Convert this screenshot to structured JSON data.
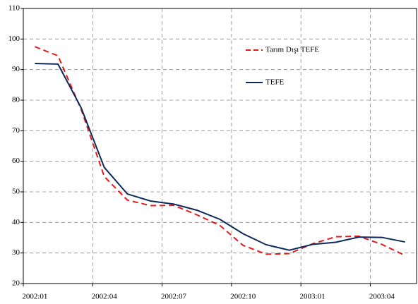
{
  "chart_data": {
    "type": "line",
    "categories": [
      "2002:01",
      null,
      null,
      "2002:04",
      null,
      null,
      "2002:07",
      null,
      null,
      "2002:10",
      null,
      null,
      "2003:01",
      null,
      null,
      "2003:04",
      null
    ],
    "series": [
      {
        "name": "Tarım Dışı TEFE",
        "color": "#e31a1c",
        "dashed": true,
        "values": [
          97.5,
          94.5,
          77,
          55,
          47.3,
          45.5,
          45.6,
          42.5,
          39,
          32.5,
          29.6,
          29.8,
          33,
          35.3,
          35.5,
          32.8,
          29.2
        ]
      },
      {
        "name": "TEFE",
        "color": "#0b2a5b",
        "dashed": false,
        "values": [
          92,
          91.8,
          77.5,
          58,
          49.3,
          47,
          46,
          44,
          41,
          36.3,
          32.7,
          30.9,
          32.8,
          33.5,
          35.2,
          35.1,
          33.6
        ]
      }
    ],
    "ylim": [
      20,
      110
    ],
    "yticks": [
      20,
      30,
      40,
      50,
      60,
      70,
      80,
      90,
      100,
      110
    ],
    "grid": true
  }
}
